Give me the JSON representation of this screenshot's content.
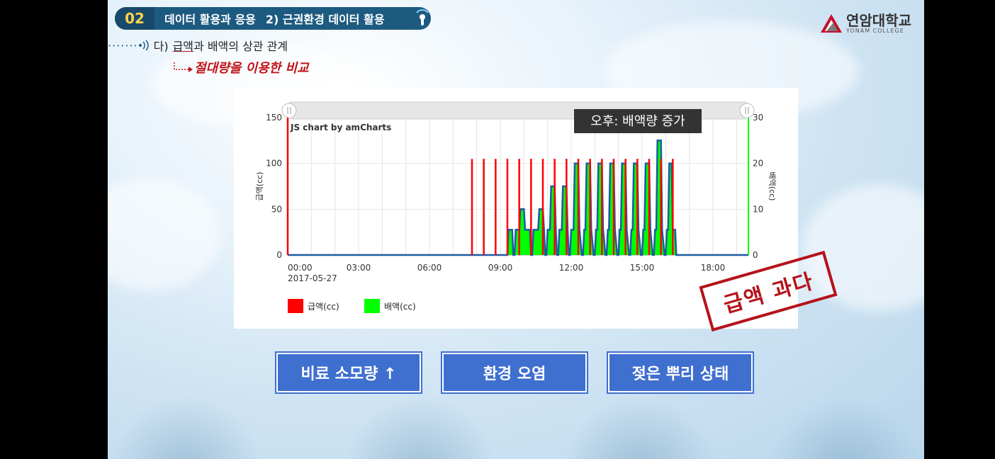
{
  "header": {
    "section_number": "02",
    "section_title": "데이터 활용과 응용",
    "section_subtitle": "2) 근권환경 데이터 활용",
    "subtitle_prefix": "다)",
    "subtitle_underlined": "급액",
    "subtitle_rest": "과 배액의 상관 관계",
    "emphasis": "절대량을 이용한 비교"
  },
  "logo": {
    "name_ko": "연암대학교",
    "name_en": "YONAM COLLEGE"
  },
  "stamp": {
    "text": "급액 과다"
  },
  "buttons": {
    "fertilizer": "비료 소모량 ↑",
    "environment": "환경 오염",
    "root": "젖은 뿌리 상태"
  },
  "colors": {
    "supply": "#ff0000",
    "drain": "#00ff00",
    "drain_border": "#1f5aa6",
    "accent": "#1d5a80",
    "button": "#3f6fcf"
  },
  "chart_data": {
    "type": "line",
    "credit": "JS chart by amCharts",
    "annotation": "오후: 배액량 증가",
    "ylabel_left": "급액(cc)",
    "ylabel_right": "배액(cc)",
    "ylim_left": [
      0,
      150
    ],
    "ylim_right": [
      0,
      30
    ],
    "yticks_left": [
      "0",
      "50",
      "100",
      "150"
    ],
    "yticks_right": [
      "0",
      "10",
      "20",
      "30"
    ],
    "xlim_hours": [
      0,
      19.5
    ],
    "xticks": [
      {
        "hour": 0,
        "label": "00:00",
        "sublabel": "2017-05-27"
      },
      {
        "hour": 3,
        "label": "03:00"
      },
      {
        "hour": 6,
        "label": "06:00"
      },
      {
        "hour": 9,
        "label": "09:00"
      },
      {
        "hour": 12,
        "label": "12:00"
      },
      {
        "hour": 15,
        "label": "15:00"
      },
      {
        "hour": 18,
        "label": "18:00"
      }
    ],
    "legend_position": "bottom-left",
    "series": [
      {
        "name": "급액(cc)",
        "color": "#ff0000",
        "axis": "left",
        "spikes": [
          {
            "hour": 0.0,
            "value": 150
          },
          {
            "hour": 7.8,
            "value": 105
          },
          {
            "hour": 8.3,
            "value": 105
          },
          {
            "hour": 8.8,
            "value": 105
          },
          {
            "hour": 9.3,
            "value": 105
          },
          {
            "hour": 9.8,
            "value": 105
          },
          {
            "hour": 10.3,
            "value": 105
          },
          {
            "hour": 10.8,
            "value": 105
          },
          {
            "hour": 11.3,
            "value": 105
          },
          {
            "hour": 11.8,
            "value": 105
          },
          {
            "hour": 12.3,
            "value": 105
          },
          {
            "hour": 12.8,
            "value": 105
          },
          {
            "hour": 13.3,
            "value": 105
          },
          {
            "hour": 13.8,
            "value": 105
          },
          {
            "hour": 14.3,
            "value": 105
          },
          {
            "hour": 14.8,
            "value": 105
          },
          {
            "hour": 15.3,
            "value": 105
          },
          {
            "hour": 15.8,
            "value": 105
          },
          {
            "hour": 16.3,
            "value": 105
          }
        ]
      },
      {
        "name": "배액(cc)",
        "color": "#00ff00",
        "axis": "right",
        "points": [
          [
            0,
            0
          ],
          [
            9.3,
            0
          ],
          [
            9.35,
            5.5
          ],
          [
            9.5,
            5.5
          ],
          [
            9.55,
            0
          ],
          [
            9.6,
            0
          ],
          [
            9.65,
            5.5
          ],
          [
            9.8,
            5.5
          ],
          [
            9.85,
            10
          ],
          [
            10.0,
            10
          ],
          [
            10.05,
            5.5
          ],
          [
            10.25,
            5.5
          ],
          [
            10.3,
            0
          ],
          [
            10.35,
            0
          ],
          [
            10.4,
            5.5
          ],
          [
            10.6,
            5.5
          ],
          [
            10.65,
            10
          ],
          [
            10.8,
            10
          ],
          [
            10.85,
            5.5
          ],
          [
            10.9,
            0
          ],
          [
            10.95,
            0
          ],
          [
            11.0,
            5.5
          ],
          [
            11.1,
            5.5
          ],
          [
            11.15,
            15
          ],
          [
            11.3,
            15
          ],
          [
            11.35,
            5.5
          ],
          [
            11.4,
            0
          ],
          [
            11.45,
            0
          ],
          [
            11.5,
            5.5
          ],
          [
            11.6,
            5.5
          ],
          [
            11.65,
            15
          ],
          [
            11.8,
            15
          ],
          [
            11.85,
            5.5
          ],
          [
            11.9,
            0
          ],
          [
            11.95,
            0
          ],
          [
            12.0,
            5.5
          ],
          [
            12.1,
            5.5
          ],
          [
            12.15,
            20
          ],
          [
            12.3,
            20
          ],
          [
            12.35,
            5.5
          ],
          [
            12.45,
            0
          ],
          [
            12.5,
            0
          ],
          [
            12.55,
            5.5
          ],
          [
            12.6,
            5.5
          ],
          [
            12.65,
            20
          ],
          [
            12.8,
            20
          ],
          [
            12.85,
            5.5
          ],
          [
            12.95,
            0
          ],
          [
            13.0,
            0
          ],
          [
            13.05,
            5.5
          ],
          [
            13.1,
            5.5
          ],
          [
            13.15,
            20
          ],
          [
            13.3,
            20
          ],
          [
            13.35,
            5.5
          ],
          [
            13.45,
            0
          ],
          [
            13.5,
            0
          ],
          [
            13.55,
            5.5
          ],
          [
            13.6,
            5.5
          ],
          [
            13.65,
            20
          ],
          [
            13.8,
            20
          ],
          [
            13.85,
            5.5
          ],
          [
            13.95,
            0
          ],
          [
            14.0,
            0
          ],
          [
            14.05,
            5.5
          ],
          [
            14.1,
            5.5
          ],
          [
            14.15,
            20
          ],
          [
            14.3,
            20
          ],
          [
            14.35,
            5.5
          ],
          [
            14.45,
            0
          ],
          [
            14.5,
            0
          ],
          [
            14.55,
            5.5
          ],
          [
            14.6,
            5.5
          ],
          [
            14.65,
            20
          ],
          [
            14.8,
            20
          ],
          [
            14.85,
            5.5
          ],
          [
            14.95,
            0
          ],
          [
            15.0,
            0
          ],
          [
            15.05,
            5.5
          ],
          [
            15.1,
            5.5
          ],
          [
            15.15,
            20
          ],
          [
            15.3,
            20
          ],
          [
            15.35,
            5.5
          ],
          [
            15.45,
            0
          ],
          [
            15.5,
            0
          ],
          [
            15.55,
            5.5
          ],
          [
            15.6,
            5.5
          ],
          [
            15.65,
            25
          ],
          [
            15.8,
            25
          ],
          [
            15.85,
            5.5
          ],
          [
            15.95,
            0
          ],
          [
            16.0,
            0
          ],
          [
            16.05,
            5.5
          ],
          [
            16.1,
            5.5
          ],
          [
            16.15,
            20
          ],
          [
            16.25,
            20
          ],
          [
            16.3,
            5.5
          ],
          [
            16.35,
            5.5
          ],
          [
            16.4,
            5.5
          ],
          [
            16.45,
            0
          ],
          [
            19.5,
            0
          ]
        ]
      }
    ]
  }
}
